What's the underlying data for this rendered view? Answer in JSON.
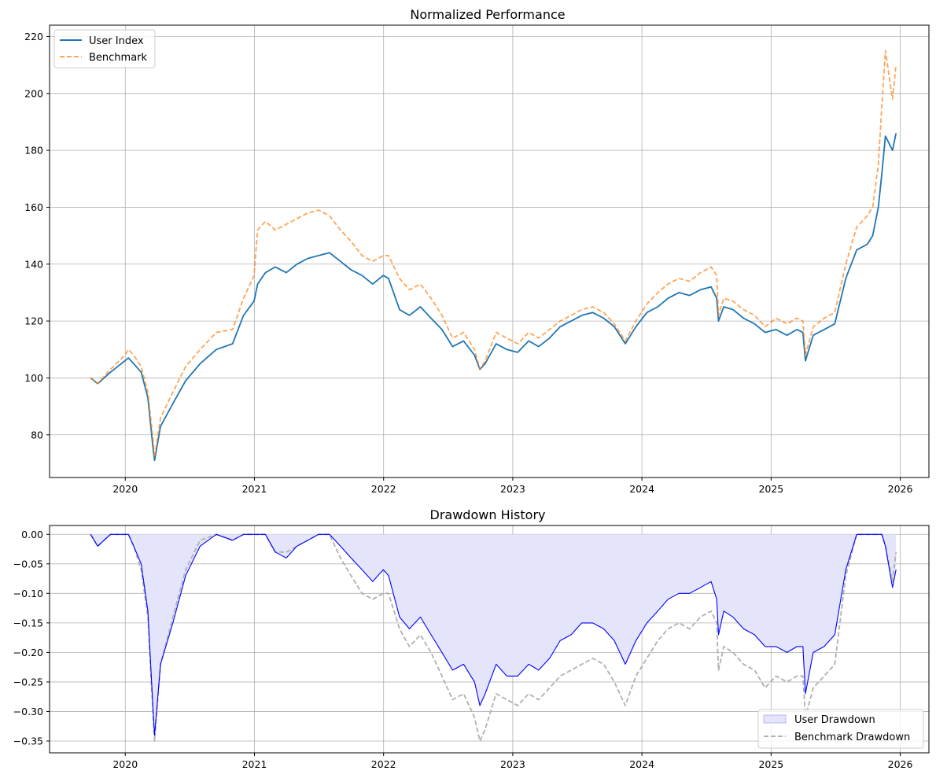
{
  "chart_data": [
    {
      "type": "line",
      "title": "Normalized Performance",
      "xlabel": "",
      "ylabel": "",
      "xlim": [
        "2019-06-01",
        "2026-03-23"
      ],
      "ylim": [
        65,
        224
      ],
      "xticks": [
        "2020",
        "2021",
        "2022",
        "2023",
        "2024",
        "2025",
        "2026"
      ],
      "yticks": [
        80,
        100,
        120,
        140,
        160,
        180,
        200,
        220
      ],
      "grid": true,
      "legend": "upper-left",
      "series": [
        {
          "name": "User Index",
          "color": "#1f77b4",
          "style": "solid",
          "x": [
            "2019-09-25",
            "2019-10-15",
            "2019-11-20",
            "2019-12-31",
            "2020-01-10",
            "2020-01-25",
            "2020-02-15",
            "2020-03-05",
            "2020-03-20",
            "2020-03-24",
            "2020-04-10",
            "2020-05-15",
            "2020-06-20",
            "2020-07-31",
            "2020-09-15",
            "2020-10-31",
            "2020-12-01",
            "2020-12-31",
            "2021-01-10",
            "2021-02-01",
            "2021-03-01",
            "2021-04-01",
            "2021-05-01",
            "2021-06-01",
            "2021-07-01",
            "2021-08-01",
            "2021-09-01",
            "2021-10-01",
            "2021-11-01",
            "2021-12-01",
            "2021-12-31",
            "2022-01-15",
            "2022-02-15",
            "2022-03-15",
            "2022-04-15",
            "2022-05-15",
            "2022-06-15",
            "2022-07-15",
            "2022-08-15",
            "2022-09-15",
            "2022-09-30",
            "2022-10-15",
            "2022-11-15",
            "2022-12-15",
            "2023-01-15",
            "2023-02-15",
            "2023-03-15",
            "2023-04-15",
            "2023-05-15",
            "2023-06-15",
            "2023-07-15",
            "2023-08-15",
            "2023-09-15",
            "2023-10-15",
            "2023-11-15",
            "2023-12-15",
            "2024-01-15",
            "2024-02-15",
            "2024-03-15",
            "2024-04-15",
            "2024-05-15",
            "2024-06-15",
            "2024-07-15",
            "2024-07-31",
            "2024-08-05",
            "2024-08-20",
            "2024-09-15",
            "2024-10-15",
            "2024-11-15",
            "2024-12-15",
            "2025-01-15",
            "2025-02-15",
            "2025-03-15",
            "2025-04-01",
            "2025-04-08",
            "2025-04-30",
            "2025-05-31",
            "2025-06-30",
            "2025-07-31",
            "2025-08-31",
            "2025-09-30",
            "2025-10-15",
            "2025-10-31",
            "2025-11-10",
            "2025-11-20",
            "2025-12-10",
            "2025-12-20"
          ],
          "values": [
            100,
            98,
            102,
            106,
            107,
            105,
            102,
            93,
            75,
            71,
            83,
            91,
            99,
            105,
            110,
            112,
            122,
            127,
            133,
            137,
            139,
            137,
            140,
            142,
            143,
            144,
            141,
            138,
            136,
            133,
            136,
            135,
            124,
            122,
            125,
            121,
            117,
            111,
            113,
            108,
            103,
            105,
            112,
            110,
            109,
            113,
            111,
            114,
            118,
            120,
            122,
            123,
            121,
            118,
            112,
            118,
            123,
            125,
            128,
            130,
            129,
            131,
            132,
            128,
            120,
            125,
            124,
            121,
            119,
            116,
            117,
            115,
            117,
            116,
            106,
            115,
            117,
            119,
            135,
            145,
            147,
            150,
            160,
            172,
            185,
            180,
            186
          ]
        },
        {
          "name": "Benchmark",
          "color": "#ff7f0e",
          "style": "dashed",
          "x": [
            "2019-09-25",
            "2019-10-15",
            "2019-11-20",
            "2019-12-31",
            "2020-01-10",
            "2020-01-25",
            "2020-02-15",
            "2020-03-05",
            "2020-03-20",
            "2020-03-24",
            "2020-04-10",
            "2020-05-15",
            "2020-06-20",
            "2020-07-31",
            "2020-09-15",
            "2020-10-31",
            "2020-12-01",
            "2020-12-31",
            "2021-01-10",
            "2021-02-01",
            "2021-03-01",
            "2021-04-01",
            "2021-05-01",
            "2021-06-01",
            "2021-07-01",
            "2021-08-01",
            "2021-09-01",
            "2021-10-01",
            "2021-11-01",
            "2021-12-01",
            "2021-12-31",
            "2022-01-15",
            "2022-02-15",
            "2022-03-15",
            "2022-04-15",
            "2022-05-15",
            "2022-06-15",
            "2022-07-15",
            "2022-08-15",
            "2022-09-15",
            "2022-09-30",
            "2022-10-15",
            "2022-11-15",
            "2022-12-15",
            "2023-01-15",
            "2023-02-15",
            "2023-03-15",
            "2023-04-15",
            "2023-05-15",
            "2023-06-15",
            "2023-07-15",
            "2023-08-15",
            "2023-09-15",
            "2023-10-15",
            "2023-11-15",
            "2023-12-15",
            "2024-01-15",
            "2024-02-15",
            "2024-03-15",
            "2024-04-15",
            "2024-05-15",
            "2024-06-15",
            "2024-07-15",
            "2024-07-31",
            "2024-08-05",
            "2024-08-20",
            "2024-09-15",
            "2024-10-15",
            "2024-11-15",
            "2024-12-15",
            "2025-01-15",
            "2025-02-15",
            "2025-03-15",
            "2025-04-01",
            "2025-04-08",
            "2025-04-30",
            "2025-05-31",
            "2025-06-30",
            "2025-07-31",
            "2025-08-31",
            "2025-09-30",
            "2025-10-15",
            "2025-10-31",
            "2025-11-10",
            "2025-11-20",
            "2025-12-10",
            "2025-12-20"
          ],
          "values": [
            100,
            98,
            103,
            108,
            110,
            108,
            104,
            95,
            78,
            72,
            86,
            95,
            104,
            110,
            116,
            117,
            128,
            136,
            152,
            155,
            152,
            154,
            156,
            158,
            159,
            157,
            152,
            148,
            143,
            141,
            143,
            143,
            135,
            131,
            133,
            128,
            122,
            114,
            116,
            110,
            103,
            106,
            116,
            114,
            112,
            116,
            114,
            117,
            120,
            122,
            124,
            125,
            123,
            119,
            113,
            120,
            126,
            130,
            133,
            135,
            134,
            137,
            139,
            136,
            122,
            128,
            127,
            124,
            122,
            118,
            121,
            119,
            121,
            120,
            108,
            118,
            121,
            123,
            140,
            153,
            157,
            160,
            175,
            196,
            215,
            198,
            210
          ]
        }
      ]
    },
    {
      "type": "area",
      "title": "Drawdown History",
      "xlabel": "",
      "ylabel": "",
      "xlim": [
        "2019-06-01",
        "2026-03-23"
      ],
      "ylim": [
        -0.37,
        0.015
      ],
      "xticks": [
        "2020",
        "2021",
        "2022",
        "2023",
        "2024",
        "2025",
        "2026"
      ],
      "yticks": [
        "0.00",
        "−0.05",
        "−0.10",
        "−0.15",
        "−0.20",
        "−0.25",
        "−0.30",
        "−0.35"
      ],
      "ytick_values": [
        0,
        -0.05,
        -0.1,
        -0.15,
        -0.2,
        -0.25,
        -0.3,
        -0.35
      ],
      "grid": true,
      "legend": "lower-right",
      "series": [
        {
          "name": "User Drawdown",
          "color": "#0000ff",
          "fill": "#e4e4fb",
          "style": "filled-area",
          "x": [
            "2019-09-25",
            "2019-10-15",
            "2019-11-20",
            "2019-12-31",
            "2020-01-10",
            "2020-01-25",
            "2020-02-15",
            "2020-03-05",
            "2020-03-20",
            "2020-03-24",
            "2020-04-10",
            "2020-05-15",
            "2020-06-20",
            "2020-07-31",
            "2020-09-15",
            "2020-10-31",
            "2020-12-01",
            "2020-12-31",
            "2021-01-10",
            "2021-02-01",
            "2021-03-01",
            "2021-04-01",
            "2021-05-01",
            "2021-06-01",
            "2021-07-01",
            "2021-08-01",
            "2021-09-01",
            "2021-10-01",
            "2021-11-01",
            "2021-12-01",
            "2021-12-31",
            "2022-01-15",
            "2022-02-15",
            "2022-03-15",
            "2022-04-15",
            "2022-05-15",
            "2022-06-15",
            "2022-07-15",
            "2022-08-15",
            "2022-09-15",
            "2022-09-30",
            "2022-10-15",
            "2022-11-15",
            "2022-12-15",
            "2023-01-15",
            "2023-02-15",
            "2023-03-15",
            "2023-04-15",
            "2023-05-15",
            "2023-06-15",
            "2023-07-15",
            "2023-08-15",
            "2023-09-15",
            "2023-10-15",
            "2023-11-15",
            "2023-12-15",
            "2024-01-15",
            "2024-02-15",
            "2024-03-15",
            "2024-04-15",
            "2024-05-15",
            "2024-06-15",
            "2024-07-15",
            "2024-07-31",
            "2024-08-05",
            "2024-08-20",
            "2024-09-15",
            "2024-10-15",
            "2024-11-15",
            "2024-12-15",
            "2025-01-15",
            "2025-02-15",
            "2025-03-15",
            "2025-04-01",
            "2025-04-08",
            "2025-04-30",
            "2025-05-31",
            "2025-06-30",
            "2025-07-31",
            "2025-08-31",
            "2025-09-30",
            "2025-10-15",
            "2025-10-31",
            "2025-11-10",
            "2025-11-20",
            "2025-12-10",
            "2025-12-20"
          ],
          "values": [
            0,
            -0.02,
            0,
            0,
            0,
            -0.02,
            -0.05,
            -0.13,
            -0.3,
            -0.34,
            -0.22,
            -0.15,
            -0.07,
            -0.02,
            0,
            -0.01,
            0,
            0,
            0,
            0,
            -0.03,
            -0.04,
            -0.02,
            -0.01,
            0,
            0,
            -0.02,
            -0.04,
            -0.06,
            -0.08,
            -0.06,
            -0.07,
            -0.14,
            -0.16,
            -0.14,
            -0.17,
            -0.2,
            -0.23,
            -0.22,
            -0.25,
            -0.29,
            -0.27,
            -0.22,
            -0.24,
            -0.24,
            -0.22,
            -0.23,
            -0.21,
            -0.18,
            -0.17,
            -0.15,
            -0.15,
            -0.16,
            -0.18,
            -0.22,
            -0.18,
            -0.15,
            -0.13,
            -0.11,
            -0.1,
            -0.1,
            -0.09,
            -0.08,
            -0.11,
            -0.17,
            -0.13,
            -0.14,
            -0.16,
            -0.17,
            -0.19,
            -0.19,
            -0.2,
            -0.19,
            -0.19,
            -0.27,
            -0.2,
            -0.19,
            -0.17,
            -0.06,
            0,
            0,
            0,
            0,
            0,
            -0.02,
            -0.09,
            -0.06
          ]
        },
        {
          "name": "Benchmark Drawdown",
          "color": "#b0b0b0",
          "style": "dashed",
          "x": [
            "2019-09-25",
            "2019-10-15",
            "2019-11-20",
            "2019-12-31",
            "2020-01-10",
            "2020-01-25",
            "2020-02-15",
            "2020-03-05",
            "2020-03-20",
            "2020-03-24",
            "2020-04-10",
            "2020-05-15",
            "2020-06-20",
            "2020-07-31",
            "2020-09-15",
            "2020-10-31",
            "2020-12-01",
            "2020-12-31",
            "2021-01-10",
            "2021-02-01",
            "2021-03-01",
            "2021-04-01",
            "2021-05-01",
            "2021-06-01",
            "2021-07-01",
            "2021-08-01",
            "2021-09-01",
            "2021-10-01",
            "2021-11-01",
            "2021-12-01",
            "2021-12-31",
            "2022-01-15",
            "2022-02-15",
            "2022-03-15",
            "2022-04-15",
            "2022-05-15",
            "2022-06-15",
            "2022-07-15",
            "2022-08-15",
            "2022-09-15",
            "2022-09-30",
            "2022-10-15",
            "2022-11-15",
            "2022-12-15",
            "2023-01-15",
            "2023-02-15",
            "2023-03-15",
            "2023-04-15",
            "2023-05-15",
            "2023-06-15",
            "2023-07-15",
            "2023-08-15",
            "2023-09-15",
            "2023-10-15",
            "2023-11-15",
            "2023-12-15",
            "2024-01-15",
            "2024-02-15",
            "2024-03-15",
            "2024-04-15",
            "2024-05-15",
            "2024-06-15",
            "2024-07-15",
            "2024-07-31",
            "2024-08-05",
            "2024-08-20",
            "2024-09-15",
            "2024-10-15",
            "2024-11-15",
            "2024-12-15",
            "2025-01-15",
            "2025-02-15",
            "2025-03-15",
            "2025-04-01",
            "2025-04-08",
            "2025-04-30",
            "2025-05-31",
            "2025-06-30",
            "2025-07-31",
            "2025-08-31",
            "2025-09-30",
            "2025-10-15",
            "2025-10-31",
            "2025-11-10",
            "2025-11-20",
            "2025-12-10",
            "2025-12-20"
          ],
          "values": [
            0,
            -0.02,
            0,
            0,
            0,
            -0.02,
            -0.06,
            -0.14,
            -0.31,
            -0.35,
            -0.22,
            -0.14,
            -0.06,
            -0.01,
            0,
            -0.01,
            0,
            0,
            0,
            0,
            -0.03,
            -0.03,
            -0.02,
            -0.01,
            0,
            0,
            -0.04,
            -0.07,
            -0.1,
            -0.11,
            -0.1,
            -0.1,
            -0.16,
            -0.19,
            -0.17,
            -0.2,
            -0.24,
            -0.28,
            -0.27,
            -0.31,
            -0.35,
            -0.33,
            -0.27,
            -0.28,
            -0.29,
            -0.27,
            -0.28,
            -0.26,
            -0.24,
            -0.23,
            -0.22,
            -0.21,
            -0.22,
            -0.25,
            -0.29,
            -0.24,
            -0.21,
            -0.18,
            -0.16,
            -0.15,
            -0.16,
            -0.14,
            -0.13,
            -0.15,
            -0.23,
            -0.19,
            -0.2,
            -0.22,
            -0.23,
            -0.26,
            -0.24,
            -0.25,
            -0.24,
            -0.24,
            -0.31,
            -0.26,
            -0.24,
            -0.22,
            -0.07,
            0,
            0,
            0,
            0,
            0,
            -0.02,
            -0.08,
            -0.03
          ]
        }
      ]
    }
  ]
}
